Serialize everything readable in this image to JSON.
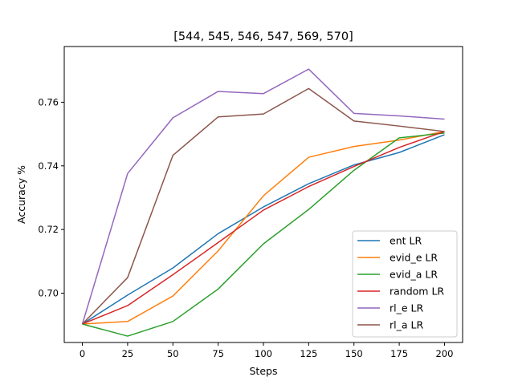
{
  "chart_data": {
    "type": "line",
    "title": "[544, 545, 546, 547, 569, 570]",
    "xlabel": "Steps",
    "ylabel": "Accuracy %",
    "x": [
      0,
      25,
      50,
      75,
      100,
      125,
      150,
      175,
      200
    ],
    "xlim": [
      -10,
      210
    ],
    "ylim": [
      0.6845,
      0.7775
    ],
    "xticks": [
      0,
      25,
      50,
      75,
      100,
      125,
      150,
      175,
      200
    ],
    "yticks": [
      0.7,
      0.72,
      0.74,
      0.76
    ],
    "ytick_labels": [
      "0.70",
      "0.72",
      "0.74",
      "0.76"
    ],
    "grid": false,
    "legend_position": "lower right",
    "series": [
      {
        "name": "ent LR",
        "color": "#1f77b4",
        "values": [
          0.6903,
          0.6994,
          0.7079,
          0.7187,
          0.7271,
          0.7344,
          0.7403,
          0.7442,
          0.7498
        ]
      },
      {
        "name": "evid_e LR",
        "color": "#ff7f0e",
        "values": [
          0.6903,
          0.6911,
          0.6991,
          0.7133,
          0.7306,
          0.7427,
          0.7461,
          0.7481,
          0.7508
        ]
      },
      {
        "name": "evid_a LR",
        "color": "#2ca02c",
        "values": [
          0.6903,
          0.6865,
          0.6911,
          0.7013,
          0.7155,
          0.7263,
          0.7386,
          0.7488,
          0.7503
        ]
      },
      {
        "name": "random LR",
        "color": "#d62728",
        "values": [
          0.6903,
          0.6961,
          0.7058,
          0.7159,
          0.7261,
          0.7335,
          0.7398,
          0.7458,
          0.7508
        ]
      },
      {
        "name": "rl_e LR",
        "color": "#9467bd",
        "values": [
          0.6903,
          0.7376,
          0.7551,
          0.7634,
          0.7627,
          0.7704,
          0.7565,
          0.7557,
          0.7547
        ]
      },
      {
        "name": "rl_a LR",
        "color": "#8c564b",
        "values": [
          0.6903,
          0.7049,
          0.7433,
          0.7554,
          0.7563,
          0.7643,
          0.7541,
          0.7525,
          0.7508
        ]
      }
    ]
  }
}
